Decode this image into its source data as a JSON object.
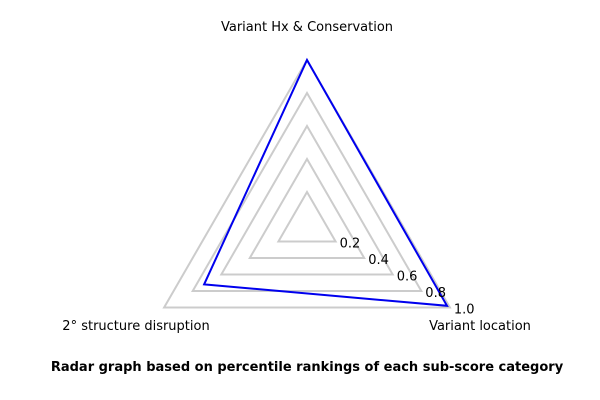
{
  "chart_data": {
    "type": "radar",
    "axes": [
      "Variant Hx & Conservation",
      "Variant location",
      "2° structure disruption"
    ],
    "rlim": [
      0,
      1.0
    ],
    "ticks": [
      0.2,
      0.4,
      0.6,
      0.8,
      1.0
    ],
    "tick_labels": [
      "0.2",
      "0.4",
      "0.6",
      "0.8",
      "1.0"
    ],
    "grid": true,
    "series": [
      {
        "values": [
          1.0,
          0.98,
          0.72
        ],
        "color": "#0000ee"
      }
    ],
    "caption": "Radar graph based on percentile rankings of each sub-score category"
  }
}
